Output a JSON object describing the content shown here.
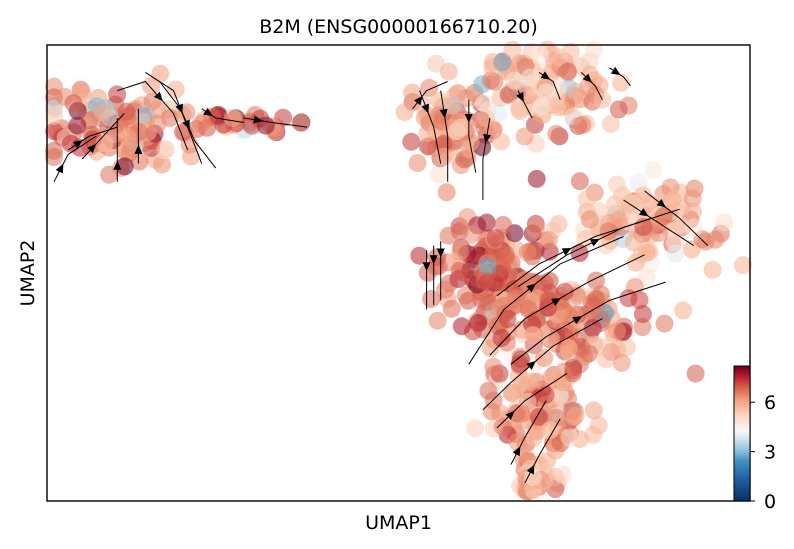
{
  "chart_data": {
    "type": "scatter",
    "title": "B2M (ENSG00000166710.20)",
    "xlabel": "UMAP1",
    "ylabel": "UMAP2",
    "xlim": [
      0,
      100
    ],
    "ylim": [
      0,
      100
    ],
    "grid": false,
    "axis_ticks": false,
    "overlay": "velocity-streamlines",
    "colorbar": {
      "cmap": "RdBu_r",
      "range": [
        0,
        8.2
      ],
      "ticks": [
        0,
        3,
        6
      ],
      "tick_labels": [
        "0",
        "3",
        "6"
      ],
      "placement": "right-bottom"
    },
    "colors": {
      "low": "#053061",
      "mid_low": "#92c5de",
      "mid": "#f7f7f7",
      "mid_high": "#f4a582",
      "high": "#67001f"
    },
    "clusters": [
      {
        "cx": 10,
        "cy": 82,
        "rx": 9,
        "ry": 8,
        "n": 120,
        "mean": 6.4
      },
      {
        "cx": 28,
        "cy": 83,
        "rx": 6,
        "ry": 2.5,
        "n": 30,
        "mean": 6.8
      },
      {
        "cx": 58,
        "cy": 82,
        "rx": 6,
        "ry": 8,
        "n": 90,
        "mean": 6.1
      },
      {
        "cx": 71,
        "cy": 90,
        "rx": 8,
        "ry": 8,
        "n": 110,
        "mean": 5.9
      },
      {
        "cx": 84,
        "cy": 62,
        "rx": 9,
        "ry": 9,
        "n": 110,
        "mean": 5.8
      },
      {
        "cx": 64,
        "cy": 50,
        "rx": 8,
        "ry": 12,
        "n": 160,
        "mean": 6.8
      },
      {
        "cx": 74,
        "cy": 40,
        "rx": 11,
        "ry": 9,
        "n": 130,
        "mean": 6.5
      },
      {
        "cx": 70,
        "cy": 20,
        "rx": 6,
        "ry": 12,
        "n": 110,
        "mean": 6.2
      },
      {
        "cx": 69,
        "cy": 5,
        "rx": 3,
        "ry": 4,
        "n": 25,
        "mean": 6.0
      }
    ],
    "streamlines": [
      [
        [
          1,
          70
        ],
        [
          3,
          76
        ],
        [
          7,
          80
        ]
      ],
      [
        [
          3,
          77
        ],
        [
          6,
          80
        ],
        [
          10,
          82
        ]
      ],
      [
        [
          5,
          75
        ],
        [
          8,
          80
        ],
        [
          11,
          85
        ]
      ],
      [
        [
          10,
          70
        ],
        [
          10,
          77
        ],
        [
          10,
          84
        ]
      ],
      [
        [
          13,
          74
        ],
        [
          13,
          80
        ],
        [
          13,
          86
        ]
      ],
      [
        [
          10,
          90
        ],
        [
          14,
          92
        ],
        [
          18,
          85
        ],
        [
          20,
          77
        ]
      ],
      [
        [
          14,
          94
        ],
        [
          18,
          90
        ],
        [
          20,
          82
        ],
        [
          22,
          74
        ]
      ],
      [
        [
          16,
          92
        ],
        [
          19,
          86
        ],
        [
          21,
          79
        ],
        [
          24,
          73
        ]
      ],
      [
        [
          22,
          86
        ],
        [
          24,
          84
        ],
        [
          28,
          83
        ]
      ],
      [
        [
          28,
          84
        ],
        [
          32,
          83
        ],
        [
          37,
          82
        ]
      ],
      [
        [
          52,
          86
        ],
        [
          54,
          90
        ],
        [
          57,
          92
        ]
      ],
      [
        [
          53,
          90
        ],
        [
          55,
          82
        ],
        [
          56,
          74
        ]
      ],
      [
        [
          56,
          90
        ],
        [
          57,
          80
        ],
        [
          57,
          70
        ]
      ],
      [
        [
          60,
          88
        ],
        [
          60,
          80
        ],
        [
          61,
          72
        ]
      ],
      [
        [
          63,
          84
        ],
        [
          62,
          75
        ],
        [
          62,
          66
        ]
      ],
      [
        [
          67,
          90
        ],
        [
          68,
          87
        ],
        [
          69,
          84
        ]
      ],
      [
        [
          70,
          94
        ],
        [
          72,
          92
        ],
        [
          73,
          88
        ]
      ],
      [
        [
          76,
          94
        ],
        [
          78,
          91
        ],
        [
          79,
          88
        ]
      ],
      [
        [
          80,
          95
        ],
        [
          82,
          93
        ],
        [
          83,
          91
        ]
      ],
      [
        [
          54,
          55
        ],
        [
          54,
          48
        ],
        [
          54,
          42
        ]
      ],
      [
        [
          55,
          56
        ],
        [
          55,
          50
        ],
        [
          55,
          43
        ]
      ],
      [
        [
          56,
          57
        ],
        [
          56,
          52
        ],
        [
          56,
          44
        ]
      ],
      [
        [
          60,
          30
        ],
        [
          65,
          42
        ],
        [
          73,
          52
        ],
        [
          82,
          58
        ]
      ],
      [
        [
          63,
          32
        ],
        [
          68,
          40
        ],
        [
          77,
          48
        ],
        [
          85,
          54
        ]
      ],
      [
        [
          66,
          30
        ],
        [
          71,
          36
        ],
        [
          80,
          44
        ],
        [
          88,
          48
        ]
      ],
      [
        [
          64,
          45
        ],
        [
          70,
          52
        ],
        [
          78,
          58
        ],
        [
          86,
          62
        ]
      ],
      [
        [
          67,
          47
        ],
        [
          74,
          54
        ],
        [
          82,
          60
        ],
        [
          90,
          64
        ]
      ],
      [
        [
          85,
          68
        ],
        [
          90,
          62
        ],
        [
          94,
          56
        ]
      ],
      [
        [
          82,
          66
        ],
        [
          88,
          60
        ],
        [
          92,
          56
        ]
      ],
      [
        [
          62,
          20
        ],
        [
          66,
          26
        ],
        [
          72,
          34
        ],
        [
          79,
          40
        ]
      ],
      [
        [
          64,
          16
        ],
        [
          68,
          22
        ],
        [
          74,
          28
        ]
      ],
      [
        [
          66,
          8
        ],
        [
          68,
          14
        ],
        [
          71,
          22
        ]
      ],
      [
        [
          68,
          4
        ],
        [
          70,
          10
        ],
        [
          73,
          18
        ]
      ]
    ]
  }
}
